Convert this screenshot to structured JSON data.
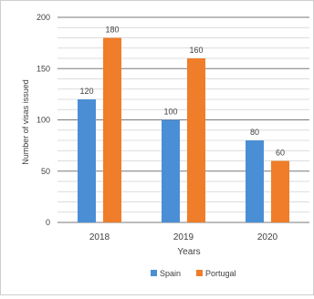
{
  "chart_data": {
    "type": "bar",
    "categories": [
      "2018",
      "2019",
      "2020"
    ],
    "series": [
      {
        "name": "Spain",
        "values": [
          120,
          100,
          80
        ],
        "color": "#4a8fd6"
      },
      {
        "name": "Portugal",
        "values": [
          180,
          160,
          60
        ],
        "color": "#f07d29"
      }
    ],
    "xlabel": "Years",
    "ylabel": "Number of visas issued",
    "ylim": [
      0,
      200
    ],
    "yticks": [
      0,
      50,
      100,
      150,
      200
    ],
    "grid": true,
    "legend": "bottom",
    "data_labels": true
  }
}
